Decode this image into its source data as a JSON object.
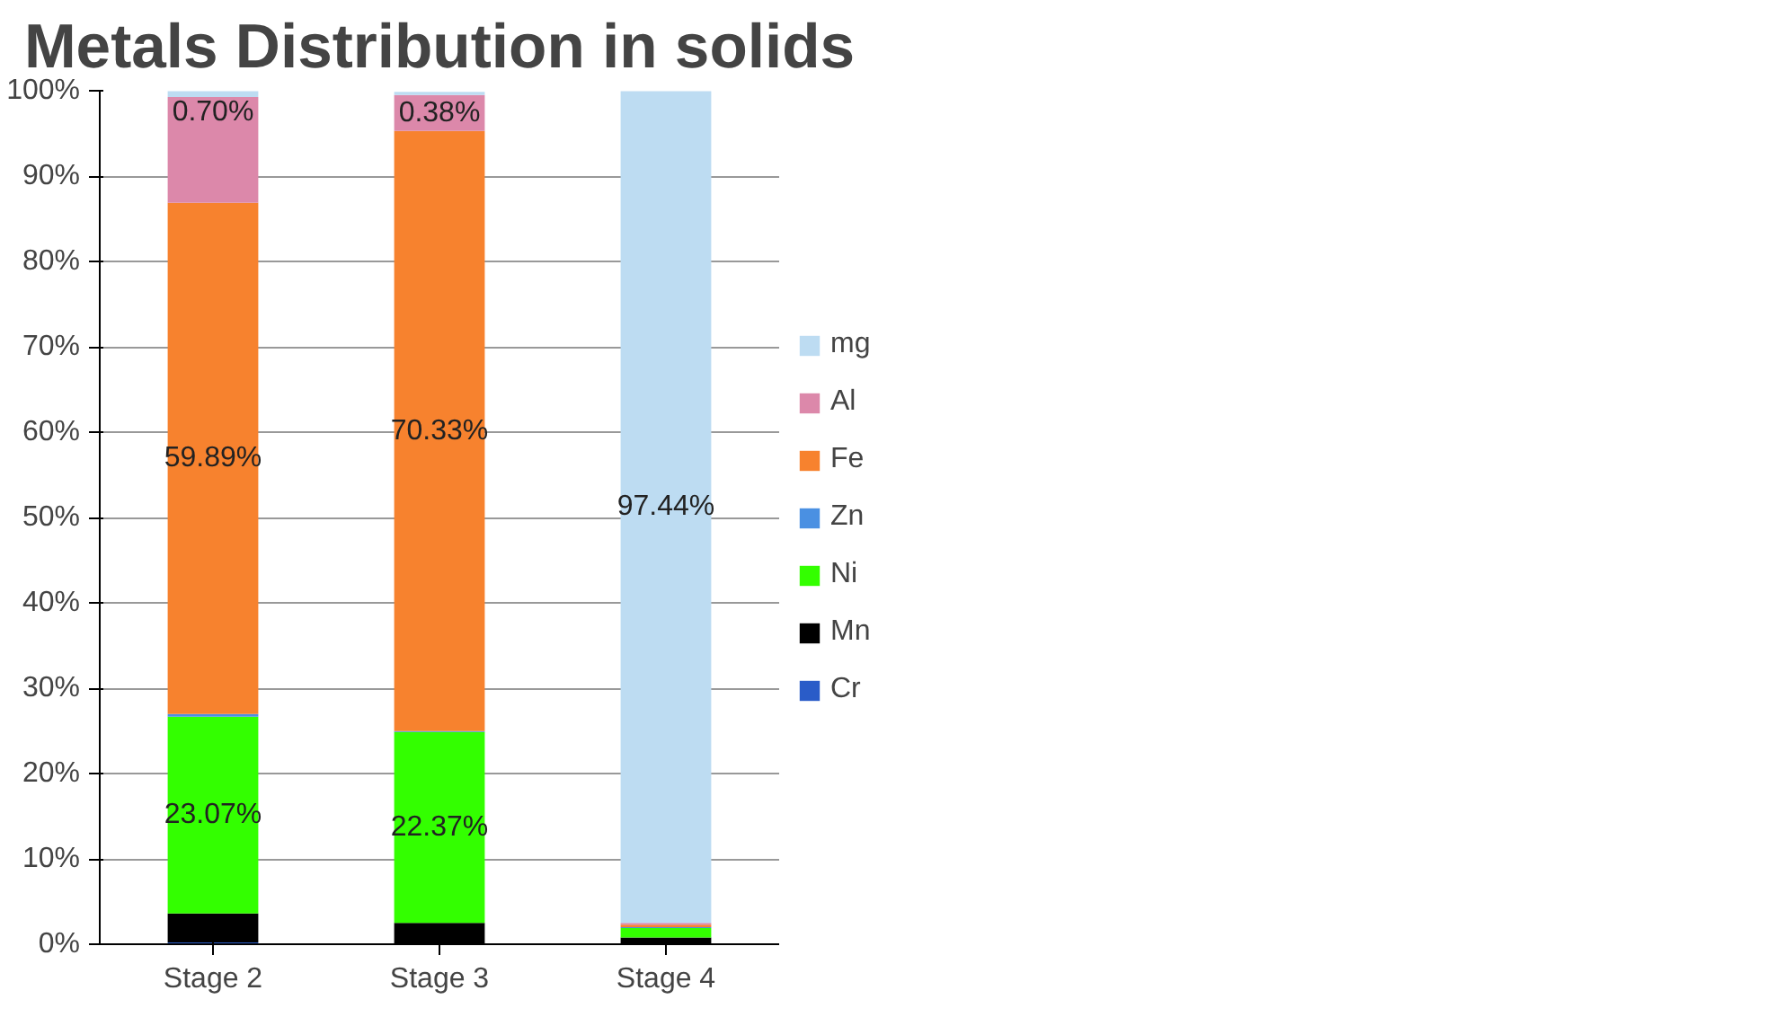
{
  "chart_data": {
    "type": "bar",
    "title": "Metals Distribution in solids",
    "categories": [
      "Stage 2",
      "Stage 3",
      "Stage 4"
    ],
    "stacked": true,
    "grid": "y",
    "legend": "right",
    "ylim": [
      0,
      100
    ],
    "yticks": [
      {
        "value": 0,
        "label": "0%"
      },
      {
        "value": 10,
        "label": "10%"
      },
      {
        "value": 20,
        "label": "20%"
      },
      {
        "value": 30,
        "label": "30%"
      },
      {
        "value": 40,
        "label": "40%"
      },
      {
        "value": 50,
        "label": "50%"
      },
      {
        "value": 60,
        "label": "60%"
      },
      {
        "value": 70,
        "label": "70%"
      },
      {
        "value": 80,
        "label": "80%"
      },
      {
        "value": 90,
        "label": "90%"
      },
      {
        "value": 100,
        "label": "100%"
      }
    ],
    "series": [
      {
        "name": "Cr",
        "color": "#2a5cc8",
        "values": [
          0.2,
          null,
          null
        ]
      },
      {
        "name": "Mn",
        "color": "#000000",
        "values": [
          3.4,
          2.5,
          0.8
        ]
      },
      {
        "name": "Ni",
        "color": "#33ff00",
        "values": [
          23.07,
          22.37,
          1.1
        ],
        "value_labels": [
          "23.07%",
          "22.37%",
          null
        ]
      },
      {
        "name": "Zn",
        "color": "#4a90e2",
        "values": [
          0.3,
          0.1,
          0.1
        ]
      },
      {
        "name": "Fe",
        "color": "#f7822e",
        "values": [
          59.89,
          70.33,
          0.3
        ],
        "value_labels": [
          "59.89%",
          "70.33%",
          null
        ]
      },
      {
        "name": "Al",
        "color": "#dc88aa",
        "values": [
          12.4,
          4.2,
          0.2
        ]
      },
      {
        "name": "mg",
        "color": "#bddcf2",
        "values": [
          0.7,
          0.38,
          97.44
        ],
        "value_labels": [
          "0.70%",
          "0.38%",
          "97.44%"
        ]
      }
    ]
  }
}
